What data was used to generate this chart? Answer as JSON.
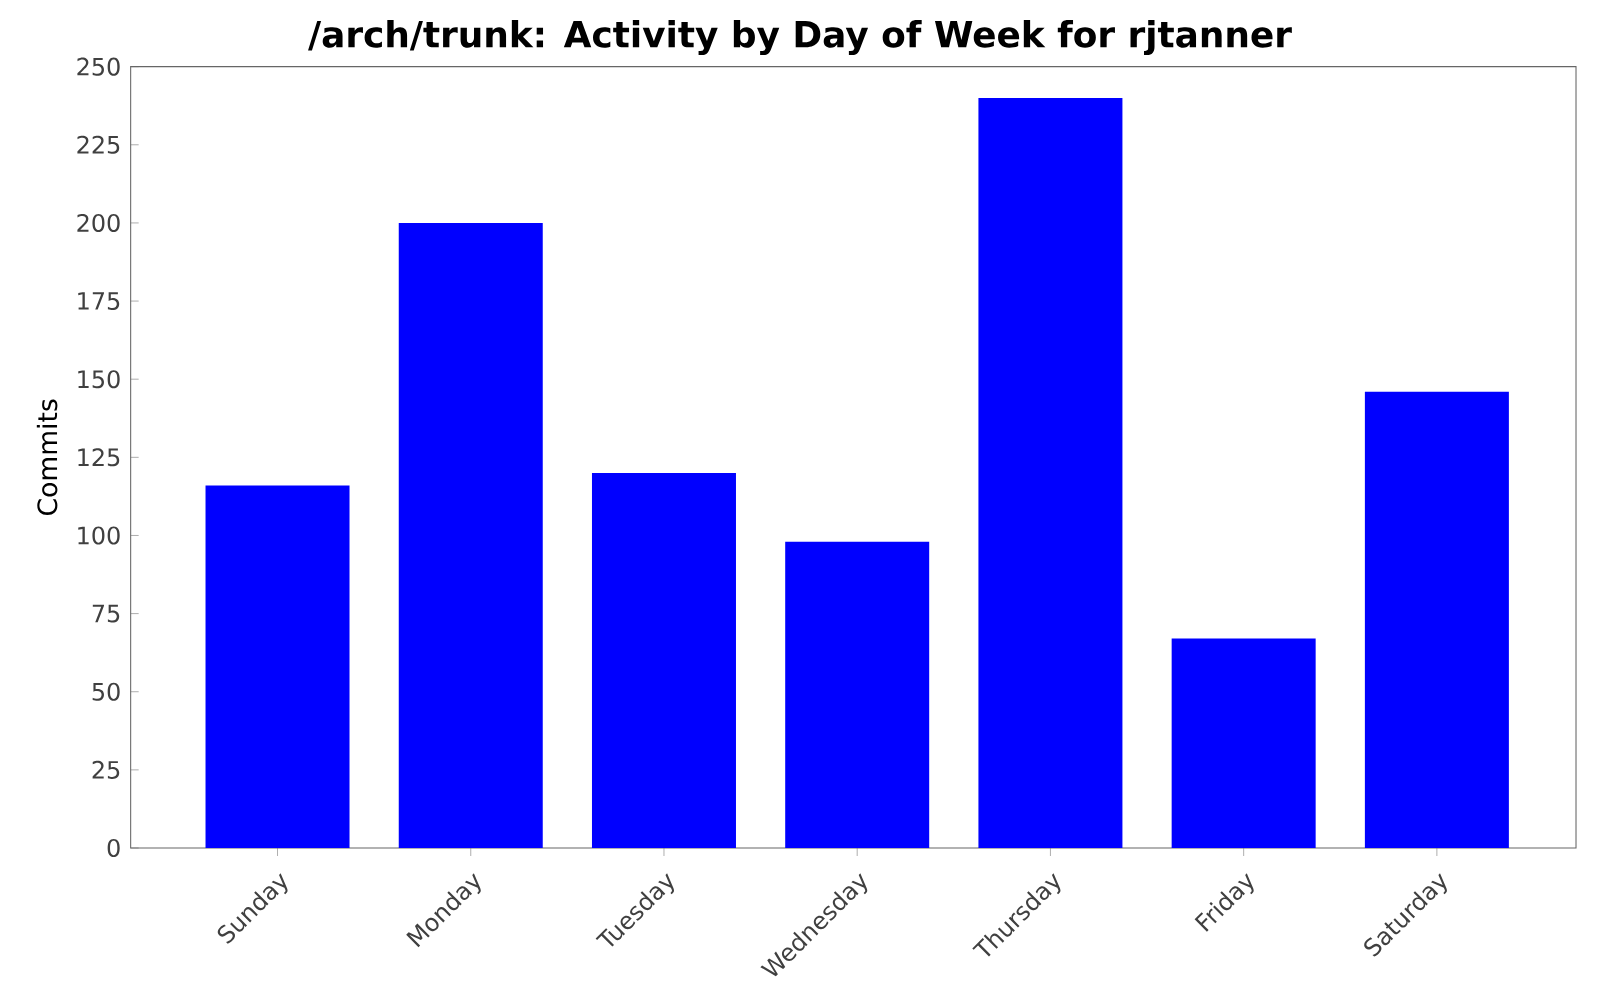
{
  "chart_data": {
    "type": "bar",
    "title": "/arch/trunk: Activity by Day of Week for rjtanner",
    "ylabel": "Commits",
    "categories": [
      "Sunday",
      "Monday",
      "Tuesday",
      "Wednesday",
      "Thursday",
      "Friday",
      "Saturday"
    ],
    "values": [
      116,
      200,
      120,
      98,
      240,
      67,
      146
    ],
    "color": "#0000ff",
    "ylim": [
      0,
      250
    ],
    "yticks": [
      0,
      25,
      50,
      75,
      100,
      125,
      150,
      175,
      200,
      225,
      250
    ],
    "grid": false
  }
}
